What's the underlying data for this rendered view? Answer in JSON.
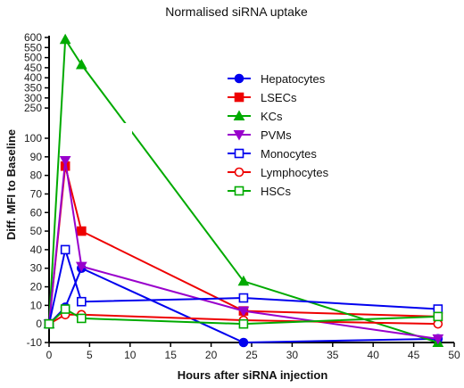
{
  "chart_data": {
    "type": "line",
    "title": "Normalised siRNA uptake",
    "xlabel": "Hours after siRNA injection",
    "ylabel": "Diff. MFI to Baseline",
    "xlim": [
      0,
      50
    ],
    "x_ticks": [
      "0",
      "5",
      "10",
      "15",
      "20",
      "25",
      "30",
      "35",
      "40",
      "45",
      "50"
    ],
    "y_axis_break": true,
    "lower_ylim": [
      -10,
      100
    ],
    "upper_ylim": [
      100,
      600
    ],
    "lower_y_ticks": [
      "-10",
      "0",
      "10",
      "20",
      "30",
      "40",
      "50",
      "60",
      "70",
      "80",
      "90",
      "100"
    ],
    "upper_y_ticks": [
      "250",
      "300",
      "350",
      "400",
      "450",
      "500",
      "550",
      "600"
    ],
    "grid": false,
    "legend_position": "upper-right",
    "series": [
      {
        "name": "Hepatocytes",
        "color": "#0000ee",
        "marker": "circle-filled",
        "points": [
          {
            "x": 0,
            "y": 0
          },
          {
            "x": 2,
            "y": 9
          },
          {
            "x": 4,
            "y": 30
          },
          {
            "x": 24,
            "y": -10
          },
          {
            "x": 48,
            "y": -8
          }
        ]
      },
      {
        "name": "LSECs",
        "color": "#ee0000",
        "marker": "square-filled",
        "points": [
          {
            "x": 0,
            "y": 0
          },
          {
            "x": 2,
            "y": 85
          },
          {
            "x": 4,
            "y": 50
          },
          {
            "x": 24,
            "y": 7
          },
          {
            "x": 48,
            "y": 4
          }
        ]
      },
      {
        "name": "KCs",
        "color": "#00aa00",
        "marker": "triangle-up-filled",
        "points": [
          {
            "x": 0,
            "y": 0
          },
          {
            "x": 2,
            "y": 590
          },
          {
            "x": 4,
            "y": 465
          },
          {
            "x": 24,
            "y": 23
          },
          {
            "x": 48,
            "y": -10
          }
        ]
      },
      {
        "name": "PVMs",
        "color": "#9900cc",
        "marker": "triangle-down-filled",
        "points": [
          {
            "x": 0,
            "y": 0
          },
          {
            "x": 2,
            "y": 88
          },
          {
            "x": 4,
            "y": 31
          },
          {
            "x": 24,
            "y": 7
          },
          {
            "x": 48,
            "y": -8
          }
        ]
      },
      {
        "name": "Monocytes",
        "color": "#0000ee",
        "marker": "square-open",
        "points": [
          {
            "x": 0,
            "y": 0
          },
          {
            "x": 2,
            "y": 40
          },
          {
            "x": 4,
            "y": 12
          },
          {
            "x": 24,
            "y": 14
          },
          {
            "x": 48,
            "y": 8
          }
        ]
      },
      {
        "name": "Lymphocytes",
        "color": "#ee0000",
        "marker": "circle-open",
        "points": [
          {
            "x": 0,
            "y": 0
          },
          {
            "x": 2,
            "y": 5
          },
          {
            "x": 4,
            "y": 5
          },
          {
            "x": 24,
            "y": 2
          },
          {
            "x": 48,
            "y": 0
          }
        ]
      },
      {
        "name": "HSCs",
        "color": "#00aa00",
        "marker": "square-open",
        "points": [
          {
            "x": 0,
            "y": 0
          },
          {
            "x": 2,
            "y": 8
          },
          {
            "x": 4,
            "y": 3
          },
          {
            "x": 24,
            "y": 0
          },
          {
            "x": 48,
            "y": 4
          }
        ]
      }
    ]
  }
}
